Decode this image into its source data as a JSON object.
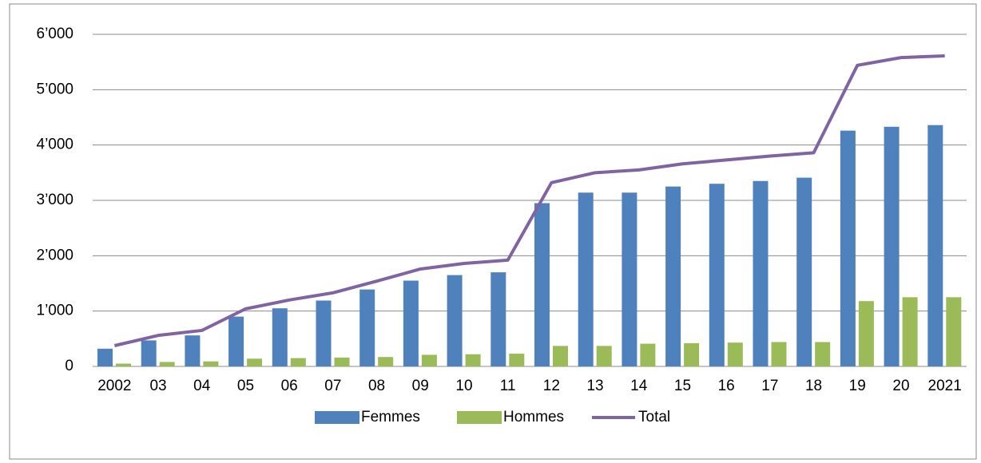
{
  "chart_data": {
    "type": "bar_line",
    "categories": [
      "2002",
      "03",
      "04",
      "05",
      "06",
      "07",
      "08",
      "09",
      "10",
      "11",
      "12",
      "13",
      "14",
      "15",
      "16",
      "17",
      "18",
      "19",
      "20",
      "2021"
    ],
    "series": [
      {
        "name": "Femmes",
        "type": "bar",
        "color": "#4f81bd",
        "values": [
          320,
          470,
          560,
          900,
          1050,
          1190,
          1390,
          1550,
          1650,
          1700,
          2950,
          3140,
          3140,
          3250,
          3300,
          3350,
          3410,
          4260,
          4330,
          4360
        ]
      },
      {
        "name": "Hommes",
        "type": "bar",
        "color": "#9bbb59",
        "values": [
          50,
          80,
          90,
          140,
          150,
          160,
          170,
          210,
          220,
          230,
          370,
          370,
          410,
          420,
          430,
          440,
          440,
          1180,
          1250,
          1250
        ]
      },
      {
        "name": "Total",
        "type": "line",
        "color": "#8064a2",
        "values": [
          375,
          560,
          650,
          1040,
          1200,
          1330,
          1540,
          1760,
          1860,
          1920,
          3320,
          3500,
          3550,
          3660,
          3730,
          3800,
          3860,
          5440,
          5580,
          5610
        ]
      }
    ],
    "ylim": [
      0,
      6000
    ],
    "yticks": [
      0,
      {
        "value": 1000,
        "label": "1’000"
      },
      {
        "value": 2000,
        "label": "2’000"
      },
      {
        "value": 3000,
        "label": "3’000"
      },
      {
        "value": 4000,
        "label": "4’000"
      },
      {
        "value": 5000,
        "label": "5’000"
      },
      {
        "value": 6000,
        "label": "6’000"
      }
    ],
    "grid": true,
    "legend": "bottom"
  }
}
